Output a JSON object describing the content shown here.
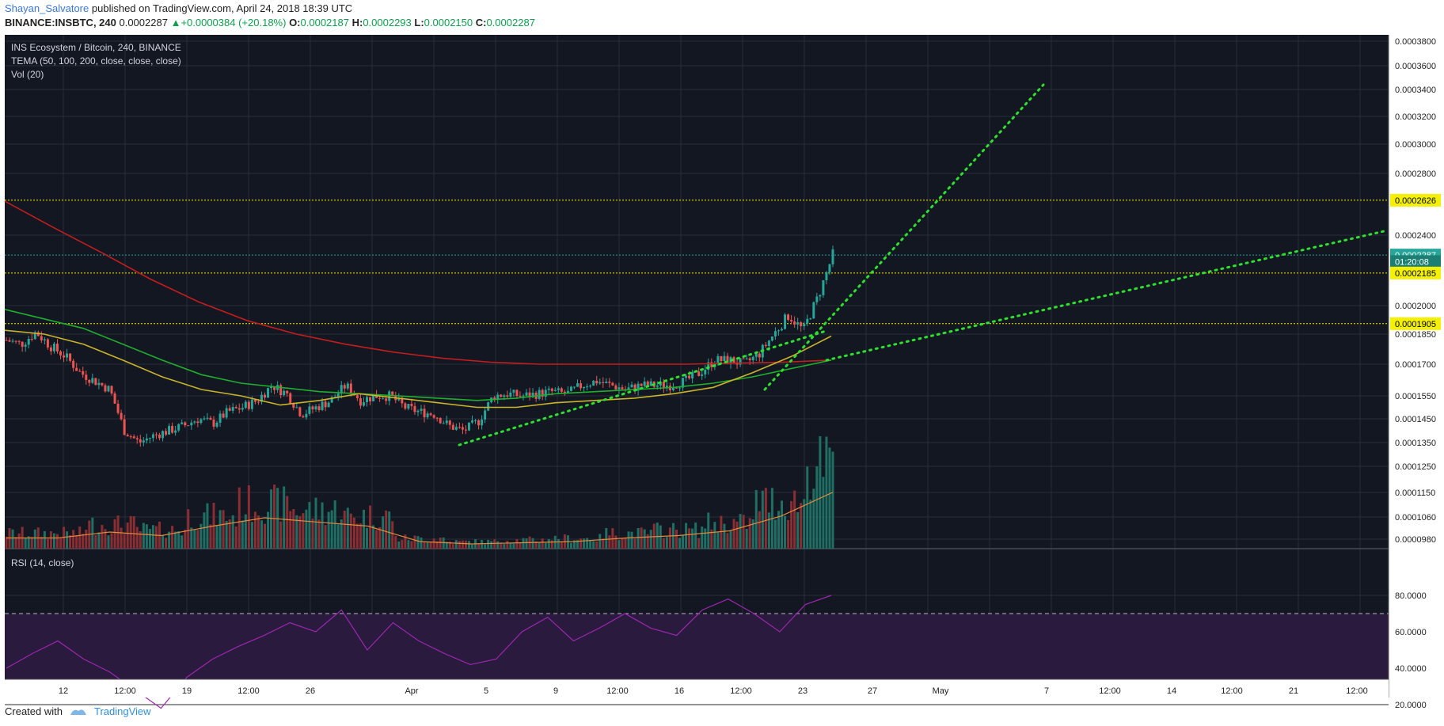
{
  "header": {
    "author": "Shayan_Salvatore",
    "published_text": "published on TradingView.com, April 24, 2018 18:39 UTC",
    "symbol": "BINANCE:INSBTC, 240",
    "last": "0.0002287",
    "change_arrow": "▲",
    "change": "+0.0000384 (+20.18%)",
    "o_label": "O:",
    "o": "0.0002187",
    "h_label": "H:",
    "h": "0.0002293",
    "l_label": "L:",
    "l": "0.0002150",
    "c_label": "C:",
    "c": "0.0002287"
  },
  "legend": {
    "title": "INS Ecosystem / Bitcoin, 240, BINANCE",
    "tema": "TEMA (50, 100, 200, close, close, close)",
    "vol": "Vol (20)",
    "rsi": "RSI (14, close)"
  },
  "footer": {
    "created_with": "Created with",
    "brand": "TradingView"
  },
  "colors": {
    "background": "#131722",
    "grid": "#2a2e39",
    "up": "#26a69a",
    "down": "#ef5350",
    "tema50": "#c9b42a",
    "tema100": "#1fae2d",
    "tema200": "#c41d1d",
    "trendline": "#2ee02e",
    "level": "#f3f000",
    "rsi": "#9c27b0",
    "rsi_band": "#2a1a3e"
  },
  "chart_data": {
    "type": "candlestick",
    "title": "INS Ecosystem / Bitcoin, 240, BINANCE",
    "price_axis_ticks": [
      "0.0003800",
      "0.0003600",
      "0.0003400",
      "0.0003200",
      "0.0003000",
      "0.0002800",
      "0.0002400",
      "0.0002000",
      "0.0001850",
      "0.0001700",
      "0.0001550",
      "0.0001450",
      "0.0001350",
      "0.0001250",
      "0.0001150",
      "0.0001060",
      "0.0000980"
    ],
    "price_labels": [
      {
        "text": "0.0002626",
        "value": 0.0002626,
        "kind": "level"
      },
      {
        "text": "0.0002287",
        "value": 0.0002287,
        "kind": "last"
      },
      {
        "text": "01:20:08",
        "value": 0.000225,
        "kind": "timer"
      },
      {
        "text": "0.0002185",
        "value": 0.0002185,
        "kind": "level"
      },
      {
        "text": "0.0001905",
        "value": 0.0001905,
        "kind": "level"
      }
    ],
    "time_ticks": [
      "12",
      "12:00",
      "19",
      "12:00",
      "26",
      "Apr",
      "5",
      "9",
      "12:00",
      "16",
      "12:00",
      "23",
      "27",
      "May",
      "7",
      "12:00",
      "14",
      "12:00",
      "21",
      "12:00"
    ],
    "rsi_ticks": [
      "80.0000",
      "60.0000",
      "40.0000",
      "20.0000"
    ],
    "rsi_levels": [
      70,
      30
    ],
    "horizontal_levels": [
      0.0002626,
      0.0002185,
      0.0001905
    ],
    "trendlines": [
      {
        "from": 0.000134,
        "to": 0.000187
      },
      {
        "from": 0.000158,
        "to": 0.000344
      },
      {
        "from": 0.000172,
        "to": 0.000243
      }
    ],
    "close_path": [
      0.000182,
      0.00018,
      0.000186,
      0.000179,
      0.000174,
      0.000166,
      0.000162,
      0.000158,
      0.00014,
      0.000135,
      0.000138,
      0.00014,
      0.000142,
      0.000145,
      0.000143,
      0.000148,
      0.00015,
      0.000153,
      0.00016,
      0.000156,
      0.000147,
      0.00015,
      0.000153,
      0.00016,
      0.000153,
      0.000155,
      0.000155,
      0.00015,
      0.000148,
      0.000147,
      0.000142,
      0.00014,
      0.000144,
      0.000155,
      0.000156,
      0.000155,
      0.000156,
      0.000157,
      0.000156,
      0.00016,
      0.000162,
      0.00016,
      0.000158,
      0.00016,
      0.00016,
      0.00016,
      0.000162,
      0.000166,
      0.000172,
      0.000172,
      0.00017,
      0.000175,
      0.000185,
      0.000195,
      0.000187,
      0.000205,
      0.0002287
    ],
    "tema_50": [
      0.000187,
      0.000185,
      0.00018,
      0.000172,
      0.000164,
      0.000158,
      0.000155,
      0.000151,
      0.000153,
      0.000156,
      0.000154,
      0.000152,
      0.00015,
      0.00015,
      0.000152,
      0.000153,
      0.000154,
      0.000156,
      0.000159,
      0.000166,
      0.000174,
      0.000184
    ],
    "tema_100": [
      0.000198,
      0.000193,
      0.000188,
      0.00018,
      0.000172,
      0.000165,
      0.000161,
      0.000159,
      0.000157,
      0.000156,
      0.000155,
      0.000154,
      0.000153,
      0.000154,
      0.000156,
      0.000157,
      0.000158,
      0.000159,
      0.000161,
      0.000164,
      0.000168,
      0.000172
    ],
    "tema_200": [
      0.000262,
      0.000245,
      0.00023,
      0.000215,
      0.000202,
      0.000192,
      0.000185,
      0.00018,
      0.000176,
      0.000173,
      0.000171,
      0.00017,
      0.00017,
      0.00017,
      0.00017,
      0.0001705,
      0.000171,
      0.000172
    ],
    "volume_peaks": [
      0.18,
      0.18,
      0.28,
      0.22,
      0.38,
      0.52,
      0.45,
      0.38,
      0.12,
      0.08,
      0.1,
      0.12,
      0.18,
      0.22,
      0.3,
      0.55,
      0.95
    ],
    "rsi": [
      40,
      48,
      55,
      45,
      38,
      28,
      18,
      35,
      45,
      52,
      58,
      65,
      60,
      72,
      50,
      65,
      55,
      48,
      42,
      45,
      60,
      68,
      55,
      62,
      70,
      62,
      58,
      72,
      78,
      70,
      60,
      75,
      80
    ]
  }
}
